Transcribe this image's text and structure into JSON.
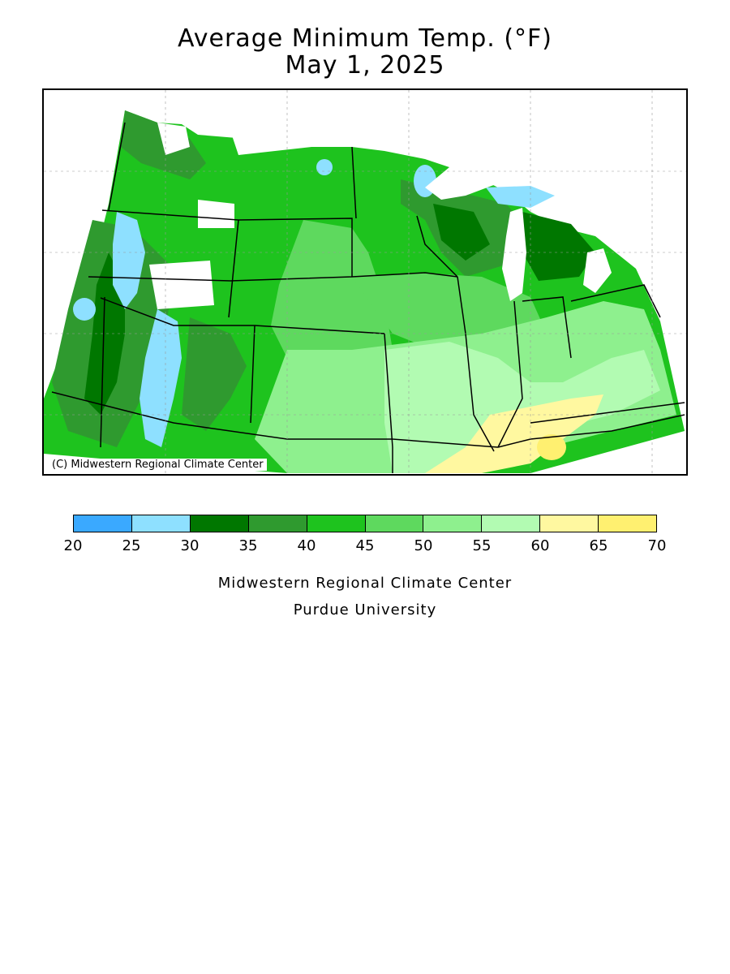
{
  "header": {
    "title": "Average Minimum Temp. (°F)",
    "date": "May 1, 2025"
  },
  "map": {
    "copyright": "(C) Midwestern Regional Climate Center"
  },
  "legend": {
    "ticks": [
      "20",
      "25",
      "30",
      "35",
      "40",
      "45",
      "50",
      "55",
      "60",
      "65",
      "70"
    ],
    "colors": [
      "#3aa9ff",
      "#8ee0ff",
      "#007700",
      "#2f9a2f",
      "#1ec31e",
      "#5ed95e",
      "#8ef08e",
      "#b2fbb2",
      "#fff8a0",
      "#fff070"
    ]
  },
  "footer": {
    "org": "Midwestern Regional Climate Center",
    "university": "Purdue University"
  }
}
